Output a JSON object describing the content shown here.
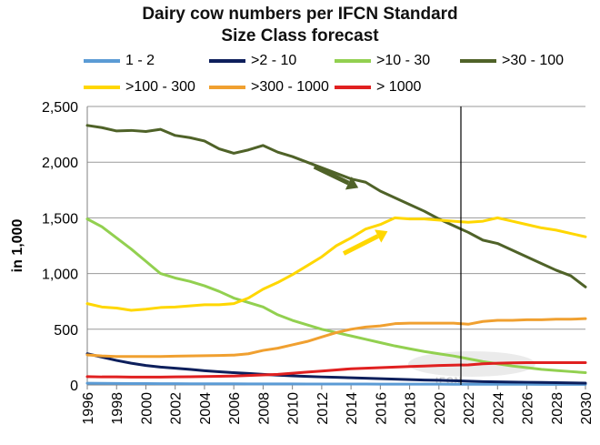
{
  "title": {
    "line1": "Dairy cow numbers per IFCN Standard",
    "line2": "Size Class forecast"
  },
  "watermark": "IFCN",
  "chart_data": {
    "type": "line",
    "title": "Dairy cow numbers per IFCN Standard Size Class forecast",
    "xlabel": "",
    "ylabel": "in 1,000",
    "xlim": [
      1996,
      2030
    ],
    "ylim": [
      0,
      2500
    ],
    "yticks": [
      0,
      500,
      1000,
      1500,
      2000,
      2500
    ],
    "ytick_labels": [
      "0",
      "500",
      "1,000",
      "1,500",
      "2,000",
      "2,500"
    ],
    "xticks": [
      1996,
      1998,
      2000,
      2002,
      2004,
      2006,
      2008,
      2010,
      2012,
      2014,
      2016,
      2018,
      2020,
      2022,
      2024,
      2026,
      2028,
      2030
    ],
    "forecast_line_x": 2021.5,
    "grid": "horizontal",
    "legend_position": "top",
    "x": [
      1996,
      1997,
      1998,
      1999,
      2000,
      2001,
      2002,
      2003,
      2004,
      2005,
      2006,
      2007,
      2008,
      2009,
      2010,
      2011,
      2012,
      2013,
      2014,
      2015,
      2016,
      2017,
      2018,
      2019,
      2020,
      2021,
      2022,
      2023,
      2024,
      2025,
      2026,
      2027,
      2028,
      2029,
      2030
    ],
    "series": [
      {
        "name": "1 - 2",
        "color": "#5b9bd5",
        "values": [
          15,
          14,
          13,
          12,
          12,
          11,
          11,
          10,
          10,
          10,
          10,
          9,
          9,
          9,
          9,
          8,
          8,
          8,
          8,
          8,
          7,
          7,
          7,
          7,
          7,
          6,
          6,
          6,
          6,
          6,
          6,
          5,
          5,
          5,
          5
        ]
      },
      {
        "name": ">2 - 10",
        "color": "#0d1f5c",
        "values": [
          280,
          250,
          220,
          195,
          175,
          160,
          150,
          140,
          128,
          118,
          110,
          103,
          95,
          88,
          82,
          77,
          72,
          68,
          64,
          60,
          56,
          52,
          48,
          44,
          42,
          38,
          34,
          30,
          28,
          26,
          24,
          22,
          20,
          18,
          16
        ]
      },
      {
        "name": ">10 - 30",
        "color": "#92d050",
        "values": [
          1490,
          1420,
          1320,
          1220,
          1110,
          1000,
          960,
          930,
          890,
          840,
          780,
          740,
          700,
          630,
          580,
          540,
          500,
          470,
          440,
          410,
          380,
          350,
          325,
          300,
          280,
          260,
          235,
          210,
          190,
          170,
          155,
          140,
          130,
          120,
          110
        ]
      },
      {
        "name": ">30 - 100",
        "color": "#4f6228",
        "values": [
          2330,
          2310,
          2280,
          2285,
          2275,
          2295,
          2240,
          2220,
          2190,
          2120,
          2080,
          2110,
          2150,
          2090,
          2050,
          2000,
          1950,
          1900,
          1850,
          1820,
          1740,
          1680,
          1620,
          1560,
          1490,
          1430,
          1370,
          1300,
          1270,
          1210,
          1150,
          1090,
          1030,
          980,
          880
        ]
      },
      {
        "name": ">100 - 300",
        "color": "#ffd700",
        "values": [
          730,
          700,
          690,
          670,
          680,
          695,
          700,
          710,
          720,
          720,
          730,
          780,
          860,
          920,
          990,
          1070,
          1150,
          1250,
          1320,
          1400,
          1440,
          1500,
          1490,
          1490,
          1480,
          1470,
          1460,
          1470,
          1500,
          1470,
          1440,
          1410,
          1390,
          1360,
          1330
        ]
      },
      {
        "name": ">300 - 1000",
        "color": "#f0a030",
        "values": [
          270,
          260,
          255,
          255,
          255,
          255,
          258,
          260,
          262,
          265,
          268,
          280,
          310,
          330,
          360,
          390,
          430,
          470,
          500,
          520,
          530,
          550,
          555,
          555,
          555,
          555,
          545,
          570,
          580,
          580,
          585,
          585,
          590,
          590,
          595
        ]
      },
      {
        "name": "> 1000",
        "color": "#e02020",
        "values": [
          75,
          72,
          72,
          70,
          70,
          70,
          72,
          74,
          76,
          78,
          80,
          85,
          90,
          95,
          105,
          115,
          125,
          135,
          145,
          150,
          155,
          160,
          165,
          170,
          175,
          178,
          180,
          190,
          195,
          198,
          200,
          200,
          200,
          200,
          200
        ]
      }
    ]
  }
}
